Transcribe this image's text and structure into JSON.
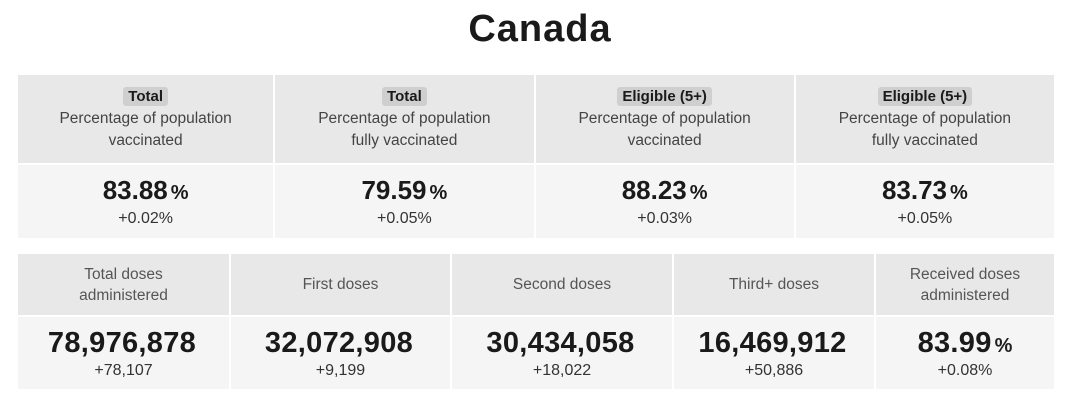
{
  "title": "Canada",
  "top_cards": [
    {
      "badge": "Total",
      "line1": "Percentage of population",
      "line2": "vaccinated",
      "value": "83.88",
      "unit": "%",
      "delta": "+0.02%"
    },
    {
      "badge": "Total",
      "line1": "Percentage of population",
      "line2": "fully vaccinated",
      "value": "79.59",
      "unit": "%",
      "delta": "+0.05%"
    },
    {
      "badge": "Eligible (5+)",
      "line1": "Percentage of population",
      "line2": "vaccinated",
      "value": "88.23",
      "unit": "%",
      "delta": "+0.03%"
    },
    {
      "badge": "Eligible (5+)",
      "line1": "Percentage of population",
      "line2": "fully vaccinated",
      "value": "83.73",
      "unit": "%",
      "delta": "+0.05%"
    }
  ],
  "bottom_cards": [
    {
      "line1": "Total doses",
      "line2": "administered",
      "value": "78,976,878",
      "unit": "",
      "delta": "+78,107"
    },
    {
      "line1": "First doses",
      "line2": "",
      "value": "32,072,908",
      "unit": "",
      "delta": "+9,199"
    },
    {
      "line1": "Second doses",
      "line2": "",
      "value": "30,434,058",
      "unit": "",
      "delta": "+18,022"
    },
    {
      "line1": "Third+ doses",
      "line2": "",
      "value": "16,469,912",
      "unit": "",
      "delta": "+50,886"
    },
    {
      "line1": "Received doses",
      "line2": "administered",
      "value": "83.99",
      "unit": "%",
      "delta": "+0.08%"
    }
  ]
}
